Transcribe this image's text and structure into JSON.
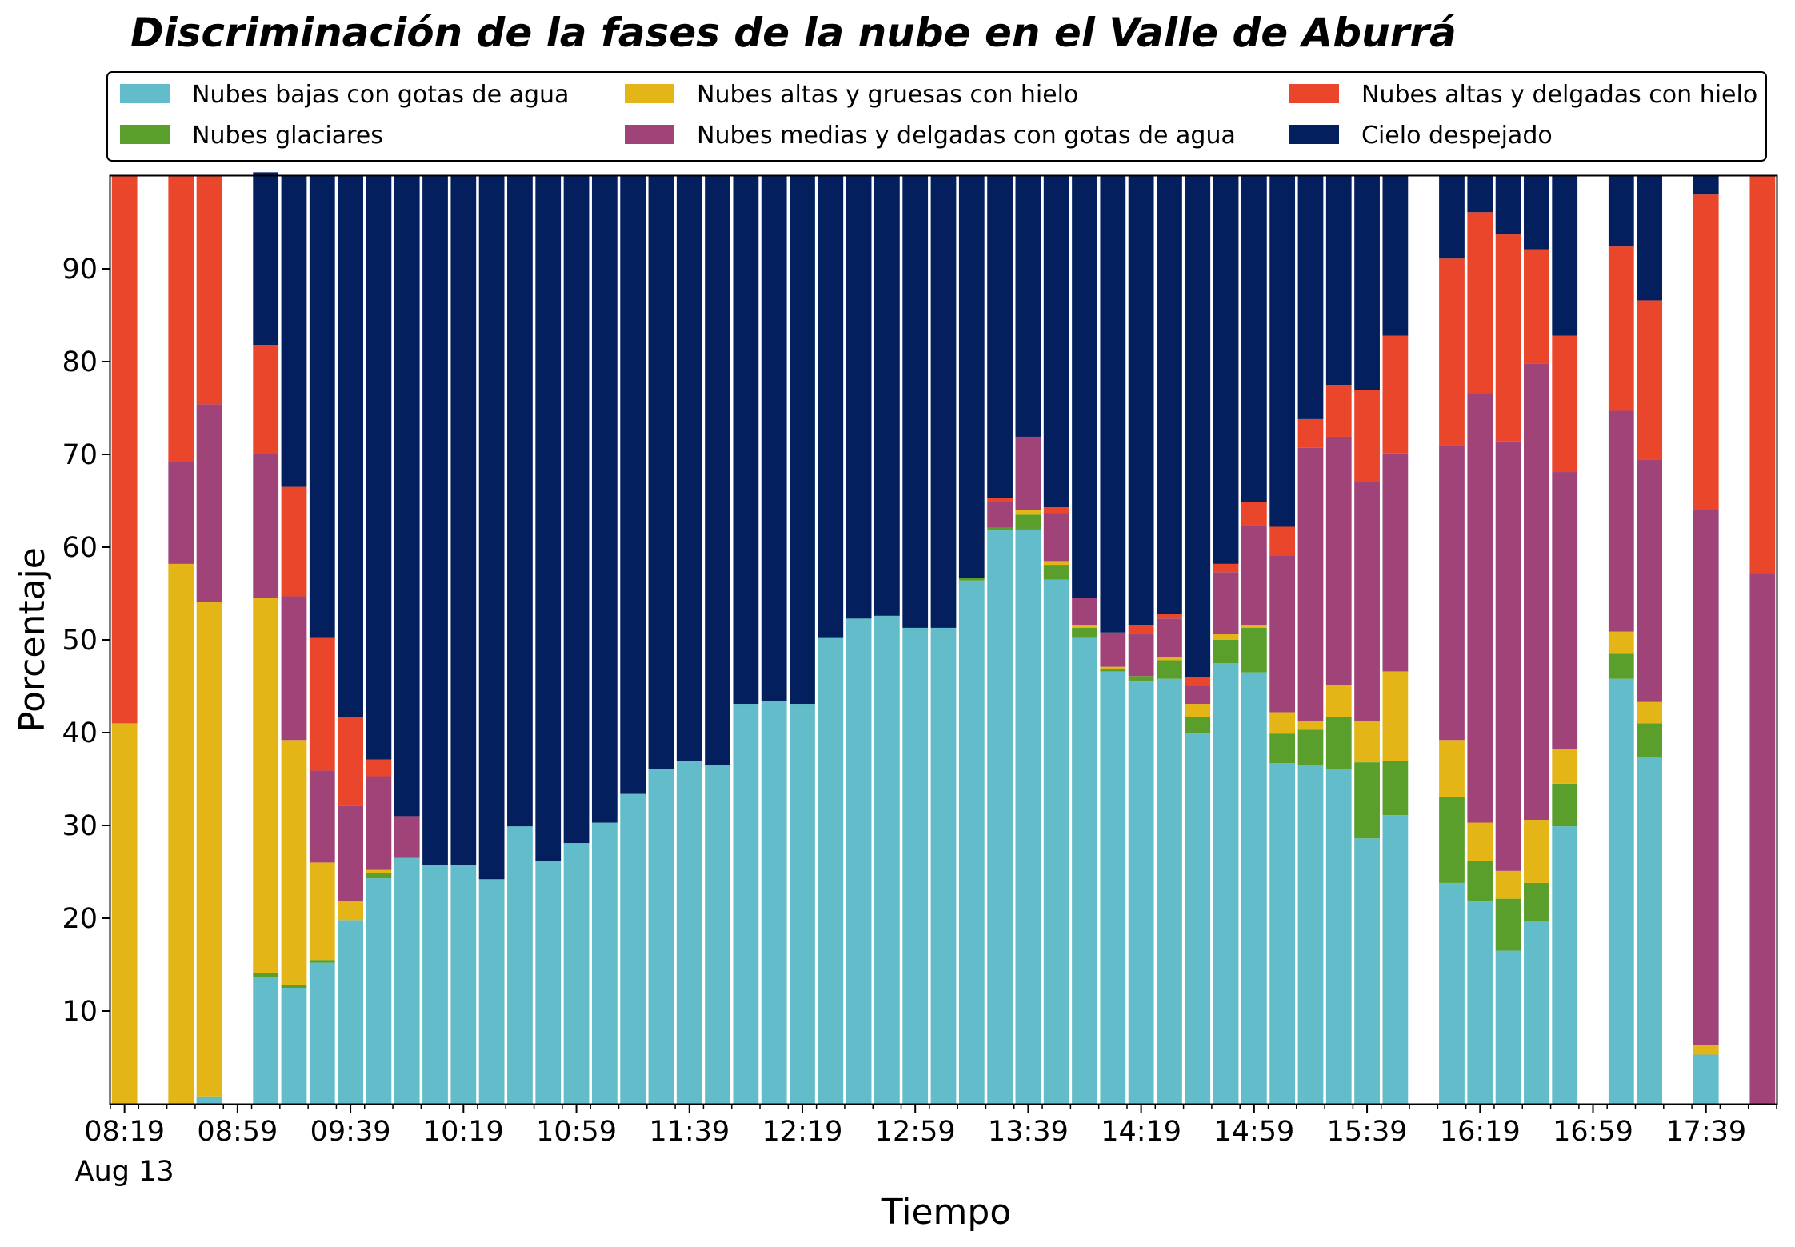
{
  "chart_data": {
    "type": "bar",
    "stacked": true,
    "title": "Discriminación de la fases de la nube en el Valle de Aburrá",
    "xlabel": "Tiempo",
    "ylabel": "Porcentaje",
    "ylim": [
      0,
      100
    ],
    "yticks": [
      10,
      20,
      30,
      40,
      50,
      60,
      70,
      80,
      90
    ],
    "xtick_labels": [
      {
        "pos": 0.5,
        "label": "08:19",
        "sub": "Aug 13"
      },
      {
        "pos": 4.5,
        "label": "08:59"
      },
      {
        "pos": 8.5,
        "label": "09:39"
      },
      {
        "pos": 12.5,
        "label": "10:19"
      },
      {
        "pos": 16.5,
        "label": "10:59"
      },
      {
        "pos": 20.5,
        "label": "11:39"
      },
      {
        "pos": 24.5,
        "label": "12:19"
      },
      {
        "pos": 28.5,
        "label": "12:59"
      },
      {
        "pos": 32.5,
        "label": "13:39"
      },
      {
        "pos": 36.5,
        "label": "14:19"
      },
      {
        "pos": 40.5,
        "label": "14:59"
      },
      {
        "pos": 44.5,
        "label": "15:39"
      },
      {
        "pos": 48.5,
        "label": "16:19"
      },
      {
        "pos": 52.5,
        "label": "16:59"
      },
      {
        "pos": 56.5,
        "label": "17:39"
      }
    ],
    "legend_location": "top, above plot, 3 columns",
    "grid": false,
    "series": [
      {
        "name": "Nubes bajas con gotas de agua",
        "color": "#63bcc9",
        "values": [
          0,
          0,
          0,
          0.8,
          0,
          13.7,
          12.5,
          15.2,
          19.8,
          24.3,
          26.5,
          25.7,
          25.7,
          24.2,
          29.9,
          26.2,
          28.1,
          30.3,
          33.4,
          36.1,
          36.9,
          36.5,
          43.1,
          43.4,
          43.1,
          50.2,
          52.3,
          52.6,
          51.3,
          51.3,
          56.4,
          61.8,
          61.9,
          56.5,
          50.2,
          46.6,
          45.5,
          45.8,
          39.9,
          47.5,
          46.5,
          36.7,
          36.5,
          36.1,
          28.6,
          31.1,
          0,
          23.8,
          21.8,
          16.5,
          19.7,
          29.9,
          0,
          45.8,
          37.3,
          0,
          5.3,
          0,
          0
        ]
      },
      {
        "name": "Nubes glaciares",
        "color": "#5a9f2c",
        "values": [
          0,
          0,
          0,
          0,
          0,
          0.4,
          0.3,
          0.3,
          0,
          0.6,
          0,
          0,
          0,
          0,
          0,
          0,
          0,
          0,
          0,
          0,
          0,
          0,
          0,
          0,
          0,
          0,
          0,
          0,
          0,
          0,
          0.3,
          0.3,
          1.6,
          1.6,
          1.1,
          0.3,
          0.6,
          2.0,
          1.8,
          2.5,
          4.8,
          3.2,
          3.8,
          5.6,
          8.2,
          5.8,
          0,
          9.3,
          4.4,
          5.6,
          4.1,
          4.6,
          0,
          2.7,
          3.7,
          0,
          0,
          0,
          0
        ]
      },
      {
        "name": "Nubes altas y gruesas con hielo",
        "color": "#e3b517",
        "values": [
          41,
          0,
          58.2,
          53.3,
          0,
          40.4,
          26.4,
          10.5,
          2.0,
          0.3,
          0,
          0,
          0,
          0,
          0,
          0,
          0,
          0,
          0,
          0,
          0,
          0,
          0,
          0,
          0,
          0,
          0,
          0,
          0,
          0,
          0,
          0,
          0.5,
          0.4,
          0.3,
          0.2,
          0,
          0.3,
          1.4,
          0.6,
          0.3,
          2.3,
          0.9,
          3.4,
          4.4,
          9.7,
          0,
          6.1,
          4.1,
          3.0,
          6.8,
          3.7,
          0,
          2.4,
          2.3,
          0,
          1.0,
          0,
          0
        ]
      },
      {
        "name": "Nubes medias y delgadas con gotas de agua",
        "color": "#a04378",
        "values": [
          0,
          0,
          11.0,
          21.3,
          0,
          15.5,
          15.5,
          9.9,
          10.3,
          10.1,
          4.5,
          0,
          0,
          0,
          0,
          0,
          0,
          0,
          0,
          0,
          0,
          0,
          0,
          0,
          0,
          0,
          0,
          0,
          0,
          0,
          0,
          2.8,
          7.9,
          5.2,
          2.9,
          3.7,
          4.5,
          4.2,
          1.9,
          6.7,
          10.8,
          16.9,
          29.5,
          26.8,
          25.8,
          23.5,
          0,
          31.8,
          46.3,
          46.3,
          49.2,
          29.9,
          0,
          23.8,
          26.1,
          0,
          57.7,
          0,
          57.2
        ]
      },
      {
        "name": "Nubes altas y delgadas con hielo",
        "color": "#ea462b",
        "values": [
          59,
          0,
          30.8,
          24.6,
          0,
          11.8,
          11.8,
          14.3,
          9.6,
          1.8,
          0,
          0,
          0,
          0,
          0,
          0,
          0,
          0,
          0,
          0,
          0,
          0,
          0,
          0,
          0,
          0,
          0,
          0,
          0,
          0,
          0,
          0.4,
          0,
          0.6,
          0,
          0,
          1.0,
          0.5,
          1.0,
          0.9,
          2.5,
          3.1,
          3.1,
          5.6,
          9.9,
          12.7,
          0,
          20.1,
          19.5,
          22.3,
          12.3,
          14.7,
          0,
          17.7,
          17.2,
          0,
          34.0,
          0,
          42.8
        ]
      },
      {
        "name": "Cielo despejado",
        "color": "#041f5d",
        "values": [
          0,
          0,
          0,
          0,
          0,
          18.6,
          33.5,
          49.8,
          58.3,
          62.9,
          69.0,
          74.3,
          74.3,
          75.8,
          70.1,
          73.8,
          71.9,
          69.7,
          66.6,
          63.9,
          63.1,
          63.5,
          56.9,
          56.6,
          56.9,
          49.8,
          47.7,
          47.4,
          48.7,
          48.7,
          43.3,
          34.7,
          28.1,
          35.7,
          45.5,
          49.2,
          48.4,
          47.2,
          54.0,
          41.8,
          35.1,
          37.8,
          26.2,
          22.5,
          23.1,
          17.2,
          0,
          9.0,
          3.9,
          6.3,
          7.9,
          17.2,
          0,
          7.6,
          13.4,
          0,
          2.0,
          0,
          0
        ]
      }
    ]
  }
}
